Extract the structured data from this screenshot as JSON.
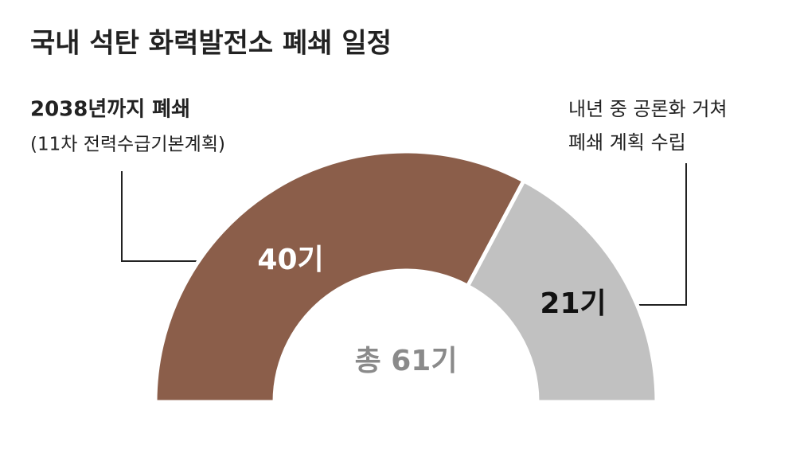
{
  "chart_data": {
    "type": "pie",
    "title": "국내 석탄 화력발전소 폐쇄 일정",
    "values": [
      40,
      21
    ],
    "value_labels": [
      "40기",
      "21기"
    ],
    "colors": [
      "#8b5e4a",
      "#c1c1c1"
    ],
    "total_label": "총 61기",
    "annotations": [
      {
        "lines": [
          "2038년까지 폐쇄",
          "(11차 전력수급기본계획)"
        ]
      },
      {
        "lines": [
          "내년 중 공론화 거쳐",
          "폐쇄 계획 수립"
        ]
      }
    ]
  }
}
